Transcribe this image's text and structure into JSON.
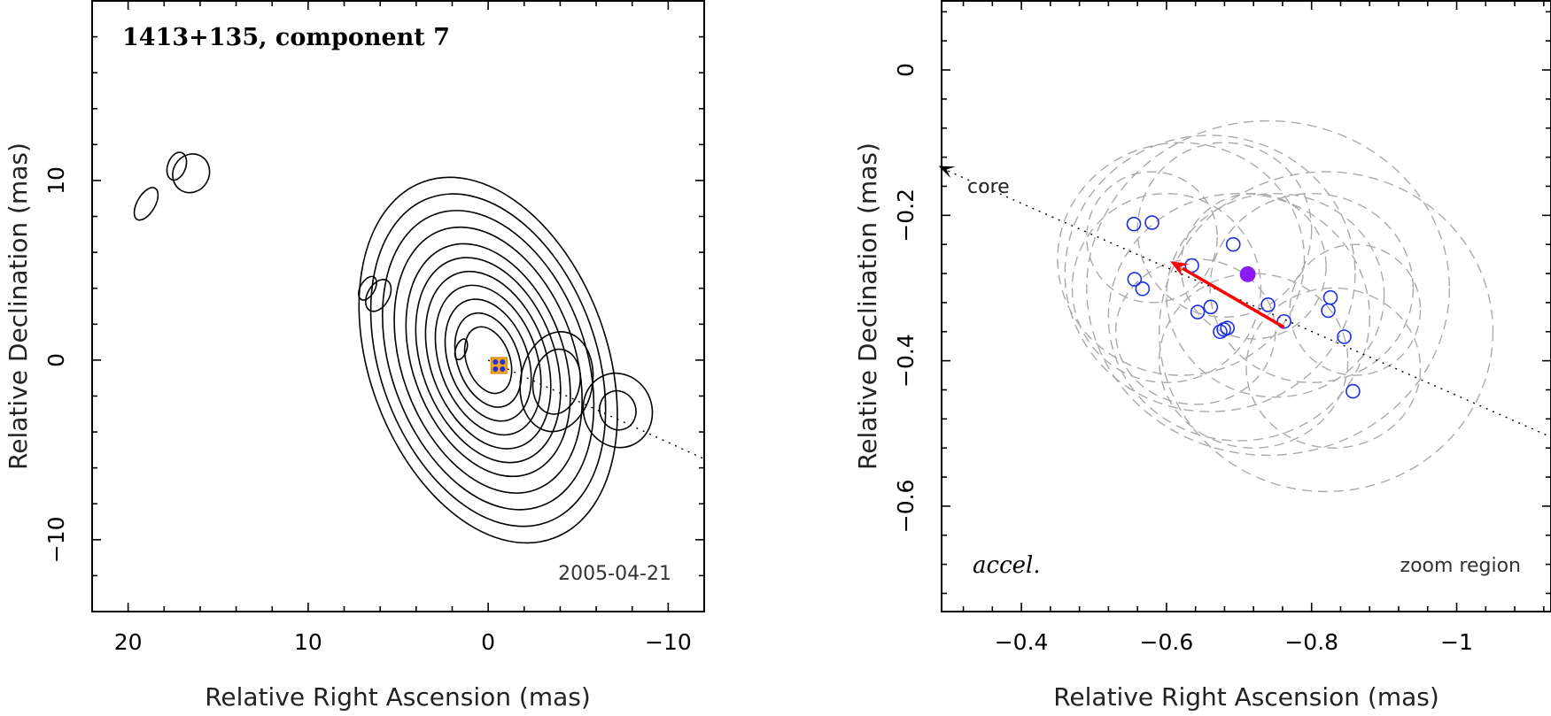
{
  "chart_data": [
    {
      "type": "contour",
      "title": "1413+135, component 7",
      "epoch_label": "2005-04-21",
      "xlabel": "Relative Right Ascension (mas)",
      "ylabel": "Relative Declination (mas)",
      "xlim": [
        22,
        -12
      ],
      "ylim": [
        -14,
        20
      ],
      "xticks": [
        20,
        10,
        0,
        -10
      ],
      "yticks": [
        10,
        0,
        -10
      ],
      "xtick_labels": [
        "20",
        "10",
        "0",
        "−10"
      ],
      "ytick_labels": [
        "10",
        "0",
        "−10"
      ],
      "component_marker": {
        "x": -0.6,
        "y": -0.3
      },
      "jet_axis": {
        "from": [
          0,
          0
        ],
        "to": [
          -12,
          -5.5
        ]
      },
      "contour_groups": [
        {
          "cx": 0,
          "cy": 0,
          "levels": [
            1.2,
            1.7,
            2.2,
            2.7,
            3.2,
            3.7,
            4.2,
            4.8,
            5.4,
            6.0,
            6.6
          ],
          "aspect": 1.6,
          "angle": -20
        },
        {
          "cx": -3.8,
          "cy": -1.2,
          "levels": [
            1.3,
            2.0
          ],
          "aspect": 1.4,
          "angle": 10
        },
        {
          "cx": -7.2,
          "cy": -2.8,
          "levels": [
            1.0,
            1.9
          ],
          "aspect": 1.1,
          "angle": -20
        },
        {
          "cx": 16.5,
          "cy": 10.4,
          "levels": [
            1.0
          ],
          "aspect": 1.1,
          "angle": 30
        },
        {
          "cx": 17.3,
          "cy": 10.8,
          "levels": [
            0.5
          ],
          "aspect": 1.6,
          "angle": 20
        },
        {
          "cx": 19.0,
          "cy": 8.7,
          "levels": [
            0.5
          ],
          "aspect": 2.0,
          "angle": 30
        },
        {
          "cx": 6.1,
          "cy": 3.6,
          "levels": [
            0.6
          ],
          "aspect": 1.6,
          "angle": 30
        },
        {
          "cx": 6.7,
          "cy": 4.0,
          "levels": [
            0.4
          ],
          "aspect": 1.8,
          "angle": 30
        },
        {
          "cx": 1.5,
          "cy": 0.6,
          "levels": [
            0.3
          ],
          "aspect": 2.0,
          "angle": 20
        }
      ]
    },
    {
      "type": "scatter",
      "xlabel": "Relative Right Ascension (mas)",
      "ylabel": "Relative Declination (mas)",
      "xlim": [
        -0.29,
        -1.13
      ],
      "ylim": [
        -0.745,
        0.095
      ],
      "xticks": [
        -0.4,
        -0.6,
        -0.8,
        -1
      ],
      "yticks": [
        0,
        -0.2,
        -0.4,
        -0.6
      ],
      "xtick_labels": [
        "−0.4",
        "−0.6",
        "−0.8",
        "−1"
      ],
      "ytick_labels": [
        "0",
        "−0.2",
        "−0.4",
        "−0.6"
      ],
      "core_label": "core",
      "accel_label": "accel.",
      "region_label": "zoom region",
      "points": [
        {
          "x": -0.555,
          "y": -0.212
        },
        {
          "x": -0.58,
          "y": -0.21
        },
        {
          "x": -0.692,
          "y": -0.24
        },
        {
          "x": -0.556,
          "y": -0.288
        },
        {
          "x": -0.567,
          "y": -0.301
        },
        {
          "x": -0.635,
          "y": -0.269
        },
        {
          "x": -0.661,
          "y": -0.326
        },
        {
          "x": -0.643,
          "y": -0.333
        },
        {
          "x": -0.74,
          "y": -0.323
        },
        {
          "x": -0.762,
          "y": -0.346
        },
        {
          "x": -0.674,
          "y": -0.36
        },
        {
          "x": -0.679,
          "y": -0.357
        },
        {
          "x": -0.684,
          "y": -0.355
        },
        {
          "x": -0.826,
          "y": -0.313
        },
        {
          "x": -0.823,
          "y": -0.331
        },
        {
          "x": -0.845,
          "y": -0.367
        },
        {
          "x": -0.857,
          "y": -0.442
        }
      ],
      "mean_position": {
        "x": -0.712,
        "y": -0.281
      },
      "acceleration_vector": {
        "from": [
          -0.762,
          -0.354
        ],
        "to": [
          -0.605,
          -0.263
        ]
      },
      "jet_axis": {
        "from": [
          -0.29,
          -0.135
        ],
        "to": [
          -1.13,
          -0.505
        ]
      },
      "error_ellipses": [
        {
          "x": -0.74,
          "y": -0.3,
          "rx": 0.25,
          "ry": 0.23
        },
        {
          "x": -0.82,
          "y": -0.36,
          "rx": 0.23,
          "ry": 0.22
        },
        {
          "x": -0.66,
          "y": -0.28,
          "rx": 0.2,
          "ry": 0.19
        },
        {
          "x": -0.62,
          "y": -0.26,
          "rx": 0.17,
          "ry": 0.16
        },
        {
          "x": -0.7,
          "y": -0.34,
          "rx": 0.18,
          "ry": 0.17
        },
        {
          "x": -0.75,
          "y": -0.31,
          "rx": 0.15,
          "ry": 0.14
        },
        {
          "x": -0.6,
          "y": -0.3,
          "rx": 0.13,
          "ry": 0.13
        },
        {
          "x": -0.8,
          "y": -0.3,
          "rx": 0.14,
          "ry": 0.13
        },
        {
          "x": -0.68,
          "y": -0.22,
          "rx": 0.12,
          "ry": 0.12
        },
        {
          "x": -0.72,
          "y": -0.4,
          "rx": 0.13,
          "ry": 0.12
        },
        {
          "x": -0.83,
          "y": -0.41,
          "rx": 0.12,
          "ry": 0.11
        },
        {
          "x": -0.64,
          "y": -0.36,
          "rx": 0.11,
          "ry": 0.1
        },
        {
          "x": -0.72,
          "y": -0.27,
          "rx": 0.1,
          "ry": 0.1
        },
        {
          "x": -0.58,
          "y": -0.23,
          "rx": 0.09,
          "ry": 0.09
        },
        {
          "x": -0.86,
          "y": -0.33,
          "rx": 0.09,
          "ry": 0.09
        }
      ]
    }
  ]
}
